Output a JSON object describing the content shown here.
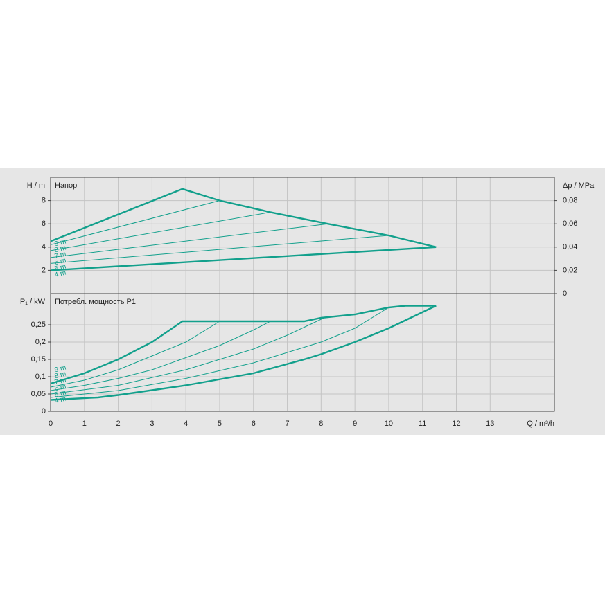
{
  "chart_data": [
    {
      "type": "line",
      "ylabel": "H / m",
      "title": "Напор",
      "y2label": "Δp / MPa",
      "xlim": [
        0,
        14.9
      ],
      "xticks": [
        0,
        1,
        2,
        3,
        4,
        5,
        6,
        7,
        8,
        9,
        10,
        11,
        12,
        13
      ],
      "ylim": [
        0,
        10
      ],
      "yticks": [
        2,
        4,
        6,
        8
      ],
      "y2lim": [
        0,
        0.1
      ],
      "y2ticks": [
        {
          "value": 0,
          "label": "0"
        },
        {
          "value": 0.02,
          "label": "0,02"
        },
        {
          "value": 0.04,
          "label": "0,04"
        },
        {
          "value": 0.06,
          "label": "0,06"
        },
        {
          "value": 0.08,
          "label": "0,08"
        }
      ],
      "grid": true,
      "series": [
        {
          "name": "9 m",
          "color": "#12a08c",
          "x": [
            0,
            3.9,
            5,
            6.5,
            8.2,
            10,
            11.4
          ],
          "values": [
            4.5,
            9,
            8,
            7,
            6,
            5,
            4
          ]
        },
        {
          "name": "8 m",
          "color": "#12a08c",
          "x": [
            0,
            5
          ],
          "values": [
            4.2,
            8
          ]
        },
        {
          "name": "7 m",
          "color": "#12a08c",
          "x": [
            0,
            6.5
          ],
          "values": [
            3.7,
            7
          ]
        },
        {
          "name": "6 m",
          "color": "#12a08c",
          "x": [
            0,
            8.2
          ],
          "values": [
            3.1,
            6
          ]
        },
        {
          "name": "5 m",
          "color": "#12a08c",
          "x": [
            0,
            10
          ],
          "values": [
            2.6,
            5
          ]
        },
        {
          "name": "4 m",
          "color": "#12a08c",
          "x": [
            0,
            11.4
          ],
          "values": [
            2,
            4
          ]
        }
      ]
    },
    {
      "type": "line",
      "ylabel": "P₁ / kW",
      "title": "Потребл. мощность P1",
      "xlabel": "Q / m³/h",
      "xlim": [
        0,
        14.9
      ],
      "xticks": [
        0,
        1,
        2,
        3,
        4,
        5,
        6,
        7,
        8,
        9,
        10,
        11,
        12,
        13
      ],
      "ylim": [
        0,
        0.34
      ],
      "yticks": [
        0,
        {
          "value": 0.05,
          "label": "0,05"
        },
        {
          "value": 0.1,
          "label": "0,1"
        },
        {
          "value": 0.15,
          "label": "0,15"
        },
        {
          "value": 0.2,
          "label": "0,2"
        },
        {
          "value": 0.25,
          "label": "0,25"
        }
      ],
      "grid": true,
      "series": [
        {
          "name": "9 m",
          "color": "#12a08c",
          "x": [
            0,
            1,
            2,
            3,
            3.9,
            7.5,
            8,
            9,
            10,
            10.5,
            11.4
          ],
          "values": [
            0.08,
            0.11,
            0.15,
            0.2,
            0.26,
            0.26,
            0.27,
            0.28,
            0.3,
            0.305,
            0.305
          ]
        },
        {
          "name": "8 m",
          "color": "#12a08c",
          "x": [
            0,
            1,
            2,
            3,
            4,
            5
          ],
          "values": [
            0.07,
            0.09,
            0.12,
            0.16,
            0.2,
            0.26
          ]
        },
        {
          "name": "7 m",
          "color": "#12a08c",
          "x": [
            0,
            1,
            2,
            3,
            4,
            5,
            6,
            6.5
          ],
          "values": [
            0.06,
            0.075,
            0.095,
            0.12,
            0.155,
            0.19,
            0.235,
            0.26
          ]
        },
        {
          "name": "6 m",
          "color": "#12a08c",
          "x": [
            0,
            2,
            4,
            6,
            7,
            8.2
          ],
          "values": [
            0.05,
            0.075,
            0.12,
            0.18,
            0.22,
            0.275
          ]
        },
        {
          "name": "5 m",
          "color": "#12a08c",
          "x": [
            0,
            2,
            4,
            6,
            8,
            9,
            10
          ],
          "values": [
            0.04,
            0.06,
            0.095,
            0.14,
            0.2,
            0.24,
            0.3
          ]
        },
        {
          "name": "4 m",
          "color": "#12a08c",
          "x": [
            0,
            1.4,
            2,
            4,
            6,
            7.5,
            8,
            9,
            10,
            11.4
          ],
          "values": [
            0.033,
            0.04,
            0.047,
            0.075,
            0.11,
            0.15,
            0.165,
            0.2,
            0.24,
            0.305
          ]
        }
      ]
    }
  ]
}
